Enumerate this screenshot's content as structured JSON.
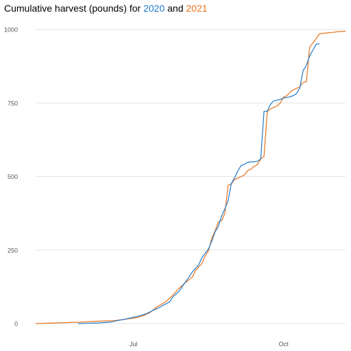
{
  "chart_data": {
    "type": "line",
    "title_parts": [
      {
        "text": "Cumulative harvest (pounds) for "
      },
      {
        "text": "2020",
        "series": 0
      },
      {
        "text": " and "
      },
      {
        "text": "2021",
        "series": 1
      }
    ],
    "xlabel": "",
    "ylabel": "",
    "x_unit": "day of year",
    "xlim": [
      122,
      312
    ],
    "ylim": [
      0,
      1000
    ],
    "x_ticks": [
      {
        "value": 182,
        "label": "Jul"
      },
      {
        "value": 274,
        "label": "Oct"
      }
    ],
    "y_ticks": [
      0,
      250,
      500,
      750,
      1000
    ],
    "grid": {
      "horizontal": true,
      "vertical": false
    },
    "legend": "title",
    "series": [
      {
        "name": "2020",
        "color": "#1f78c8",
        "x": [
          148,
          160,
          168,
          172,
          176,
          180,
          184,
          186,
          190,
          194,
          198,
          200,
          204,
          206,
          210,
          212,
          216,
          218,
          222,
          224,
          228,
          230,
          232,
          234,
          236,
          238,
          240,
          242,
          244,
          246,
          248,
          250,
          252,
          254,
          256,
          258,
          260,
          262,
          264,
          266,
          267,
          268,
          272,
          274,
          278,
          280,
          282,
          284,
          286,
          288,
          290,
          292,
          294,
          296
        ],
        "y": [
          0,
          2,
          5,
          10,
          14,
          19,
          24,
          27,
          34,
          45,
          55,
          62,
          73,
          90,
          110,
          127,
          158,
          175,
          200,
          225,
          254,
          280,
          312,
          330,
          365,
          390,
          418,
          477,
          495,
          520,
          537,
          542,
          548,
          550,
          550,
          552,
          560,
          722,
          722,
          745,
          752,
          757,
          762,
          767,
          771,
          775,
          782,
          802,
          860,
          878,
          910,
          930,
          950,
          952
        ]
      },
      {
        "name": "2021",
        "color": "#e8721c",
        "x": [
          122,
          150,
          156,
          164,
          170,
          176,
          180,
          184,
          188,
          192,
          196,
          198,
          202,
          206,
          210,
          214,
          218,
          220,
          224,
          226,
          228,
          230,
          232,
          234,
          236,
          238,
          240,
          242,
          244,
          246,
          248,
          250,
          252,
          254,
          256,
          258,
          260,
          262,
          264,
          266,
          268,
          270,
          272,
          274,
          276,
          278,
          280,
          282,
          284,
          286,
          288,
          290,
          292,
          294,
          296,
          300,
          304,
          308,
          312
        ],
        "y": [
          0,
          5,
          7,
          9,
          10,
          14,
          17,
          20,
          27,
          37,
          55,
          62,
          75,
          96,
          120,
          140,
          158,
          180,
          205,
          230,
          248,
          290,
          315,
          345,
          350,
          375,
          470,
          475,
          490,
          495,
          500,
          505,
          520,
          525,
          535,
          540,
          560,
          568,
          720,
          730,
          735,
          740,
          750,
          770,
          775,
          787,
          795,
          800,
          805,
          820,
          822,
          940,
          955,
          968,
          985,
          988,
          990,
          993,
          994
        ]
      }
    ]
  }
}
